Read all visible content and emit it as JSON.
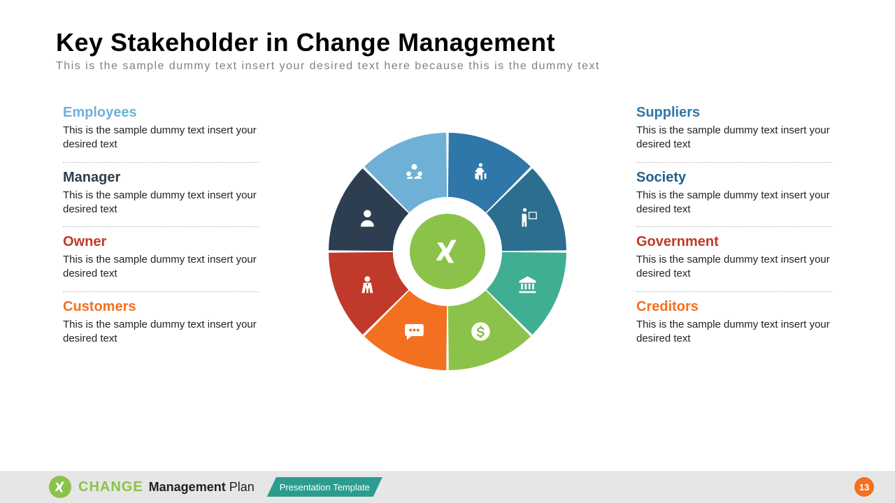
{
  "header": {
    "title": "Key Stakeholder in Change Management",
    "subtitle": "This is the sample dummy text insert your desired text here because this is the dummy text"
  },
  "body_text": "This is the sample dummy text insert your desired text",
  "left_items": [
    {
      "label": "Employees",
      "color": "#6fb1d6"
    },
    {
      "label": "Manager",
      "color": "#2c3e50"
    },
    {
      "label": "Owner",
      "color": "#c0392b"
    },
    {
      "label": "Customers",
      "color": "#f37021"
    }
  ],
  "right_items": [
    {
      "label": "Suppliers",
      "color": "#2f77a8"
    },
    {
      "label": "Society",
      "color": "#1e5f8a"
    },
    {
      "label": "Government",
      "color": "#c0392b"
    },
    {
      "label": "Creditors",
      "color": "#f37021"
    }
  ],
  "chart": {
    "type": "radial-segments",
    "outer_radius": 170,
    "inner_radius": 78,
    "gap_deg": 1.2,
    "center_circle": {
      "radius": 54,
      "fill": "#8bc34a",
      "icon": "xing"
    },
    "background": "#ffffff",
    "segments": [
      {
        "name": "employees",
        "color": "#6fb1d6",
        "icon": "team"
      },
      {
        "name": "suppliers",
        "color": "#2f77a8",
        "icon": "traveler"
      },
      {
        "name": "society",
        "color": "#2c6e8e",
        "icon": "presenter"
      },
      {
        "name": "government",
        "color": "#3fae92",
        "icon": "bank"
      },
      {
        "name": "creditors",
        "color": "#8bc34a",
        "icon": "dollar"
      },
      {
        "name": "customers",
        "color": "#f37021",
        "icon": "chat"
      },
      {
        "name": "owner",
        "color": "#c0392b",
        "icon": "businessman"
      },
      {
        "name": "manager",
        "color": "#2c3e50",
        "icon": "user"
      }
    ]
  },
  "footer": {
    "brand_change": "CHANGE",
    "brand_mp_bold": "Management",
    "brand_mp_light": "Plan",
    "ribbon": "Presentation Template",
    "page": "13",
    "logo_bg": "#8bc34a",
    "page_bg": "#f37021",
    "ribbon_bg": "#2a9d8f"
  }
}
